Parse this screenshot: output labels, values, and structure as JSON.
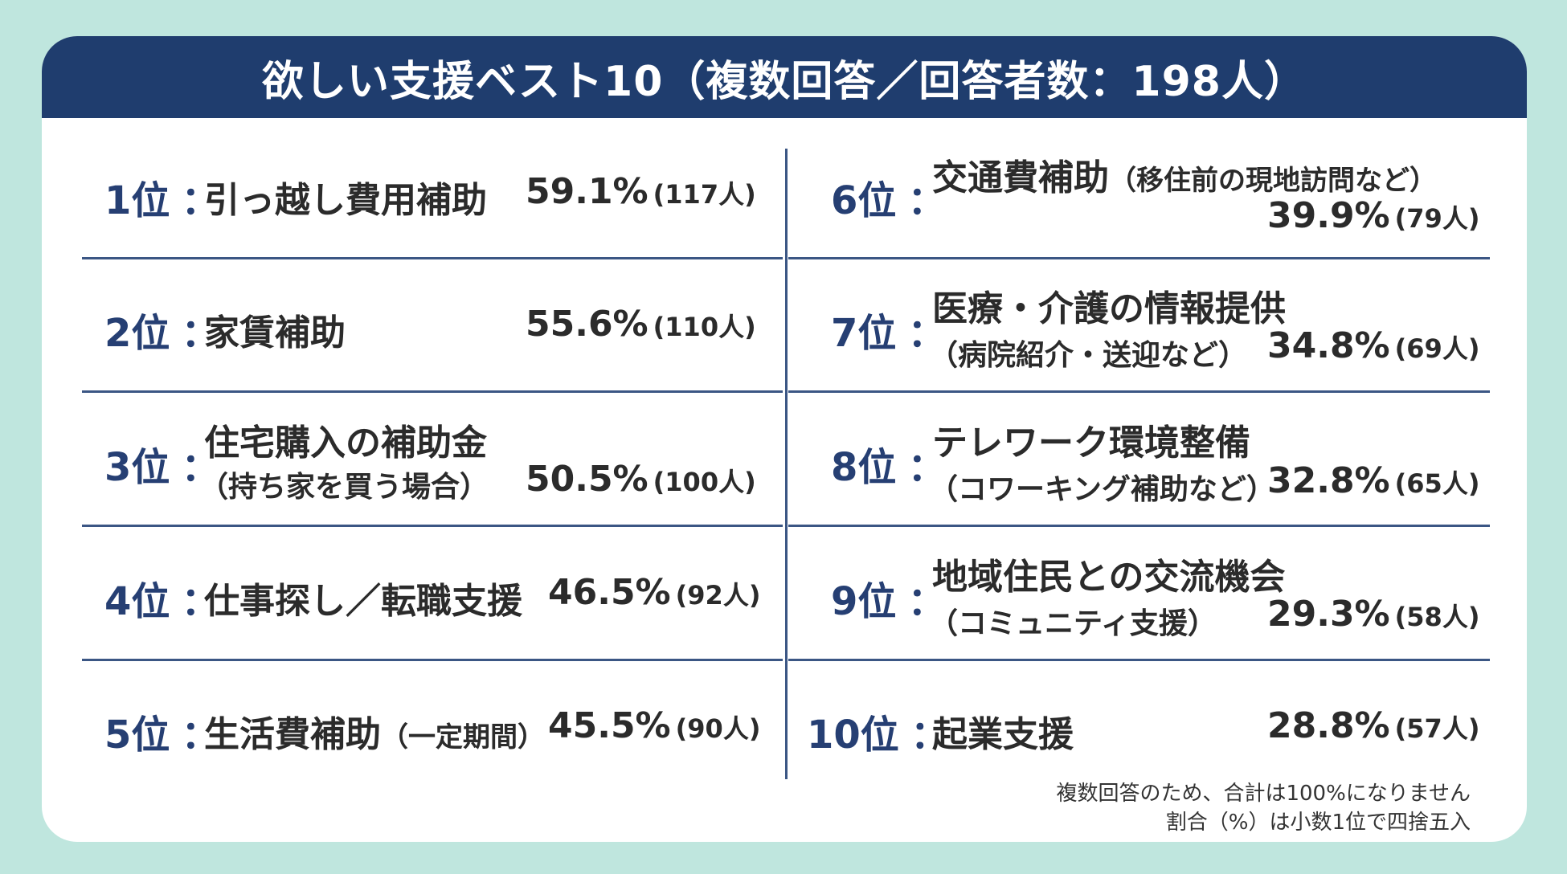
{
  "title": "欲しい支援ベスト10（複数回答／回答者数：198人）",
  "items": [
    {
      "rank": "1位",
      "name": "引っ越し費用補助",
      "sub": "",
      "pct": "59.1%",
      "count": "(117人)"
    },
    {
      "rank": "2位",
      "name": "家賃補助",
      "sub": "",
      "pct": "55.6%",
      "count": "(110人)"
    },
    {
      "rank": "3位",
      "name": "住宅購入の補助金",
      "sub": "（持ち家を買う場合）",
      "pct": "50.5%",
      "count": "(100人)"
    },
    {
      "rank": "4位",
      "name": "仕事探し／転職支援",
      "sub": "",
      "pct": "46.5%",
      "count": "(92人)"
    },
    {
      "rank": "5位",
      "name": "生活費補助",
      "sub": "（一定期間）",
      "pct": "45.5%",
      "count": "(90人)"
    },
    {
      "rank": "6位",
      "name": "交通費補助",
      "sub": "（移住前の現地訪問など）",
      "pct": "39.9%",
      "count": "(79人)"
    },
    {
      "rank": "7位",
      "name": "医療・介護の情報提供",
      "sub": "（病院紹介・送迎など）",
      "pct": "34.8%",
      "count": "(69人)"
    },
    {
      "rank": "8位",
      "name": "テレワーク環境整備",
      "sub": "（コワーキング補助など）",
      "pct": "32.8%",
      "count": "(65人)"
    },
    {
      "rank": "9位",
      "name": "地域住民との交流機会",
      "sub": "（コミュニティ支援）",
      "pct": "29.3%",
      "count": "(58人)"
    },
    {
      "rank": "10位",
      "name": "起業支援",
      "sub": "",
      "pct": "28.8%",
      "count": "(57人)"
    }
  ],
  "colon": "：",
  "footnotes": [
    "複数回答のため、合計は100%になりません",
    "割合（%）は小数1位で四捨五入"
  ],
  "colors": {
    "background": "#bfe6de",
    "title_bar": "#1f3d6e",
    "rank_text": "#263f73",
    "highlight": "#f5e36a"
  }
}
